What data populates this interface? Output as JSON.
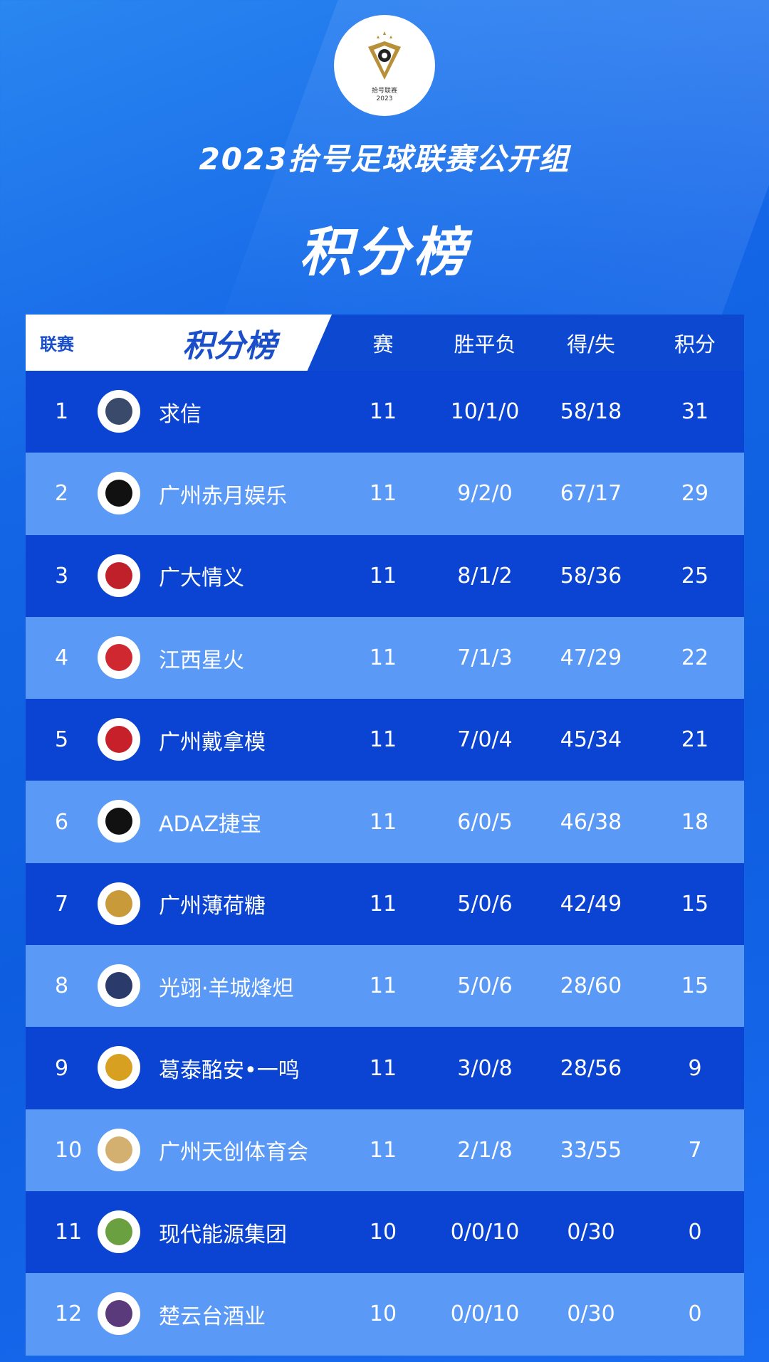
{
  "header": {
    "logo_text": "拾号联赛",
    "logo_year": "2023",
    "title": "2023拾号足球联赛公开组",
    "subtitle": "积分榜"
  },
  "table": {
    "head": {
      "league": "联赛",
      "label": "积分榜",
      "played": "赛",
      "wdl": "胜平负",
      "goals": "得/失",
      "points": "积分"
    },
    "rows": [
      {
        "rank": "1",
        "team": "求信",
        "played": "11",
        "wdl": "10/1/0",
        "goals": "58/18",
        "points": "31",
        "badge_color": "#3a4a6a"
      },
      {
        "rank": "2",
        "team": "广州赤月娱乐",
        "played": "11",
        "wdl": "9/2/0",
        "goals": "67/17",
        "points": "29",
        "badge_color": "#111111"
      },
      {
        "rank": "3",
        "team": "广大情义",
        "played": "11",
        "wdl": "8/1/2",
        "goals": "58/36",
        "points": "25",
        "badge_color": "#c0202a"
      },
      {
        "rank": "4",
        "team": "江西星火",
        "played": "11",
        "wdl": "7/1/3",
        "goals": "47/29",
        "points": "22",
        "badge_color": "#d02830"
      },
      {
        "rank": "5",
        "team": "广州戴拿模",
        "played": "11",
        "wdl": "7/0/4",
        "goals": "45/34",
        "points": "21",
        "badge_color": "#c8202a"
      },
      {
        "rank": "6",
        "team": "ADAZ捷宝",
        "played": "11",
        "wdl": "6/0/5",
        "goals": "46/38",
        "points": "18",
        "badge_color": "#111111"
      },
      {
        "rank": "7",
        "team": "广州薄荷糖",
        "played": "11",
        "wdl": "5/0/6",
        "goals": "42/49",
        "points": "15",
        "badge_color": "#c89a3a"
      },
      {
        "rank": "8",
        "team": "光翊·羊城烽炟",
        "played": "11",
        "wdl": "5/0/6",
        "goals": "28/60",
        "points": "15",
        "badge_color": "#2a3a6a"
      },
      {
        "rank": "9",
        "team": "葛泰酩安•一鸣",
        "played": "11",
        "wdl": "3/0/8",
        "goals": "28/56",
        "points": "9",
        "badge_color": "#d8a020"
      },
      {
        "rank": "10",
        "team": "广州天创体育会",
        "played": "11",
        "wdl": "2/1/8",
        "goals": "33/55",
        "points": "7",
        "badge_color": "#d4b070"
      },
      {
        "rank": "11",
        "team": "现代能源集团",
        "played": "10",
        "wdl": "0/0/10",
        "goals": "0/30",
        "points": "0",
        "badge_color": "#6aa040"
      },
      {
        "rank": "12",
        "team": "楚云台酒业",
        "played": "10",
        "wdl": "0/0/10",
        "goals": "0/30",
        "points": "0",
        "badge_color": "#5a3a7a"
      }
    ]
  },
  "colors": {
    "background": "#1466e6",
    "row_dark": "#0b44d2",
    "row_light": "#5a9af6",
    "header_text": "#1a4fc9"
  }
}
